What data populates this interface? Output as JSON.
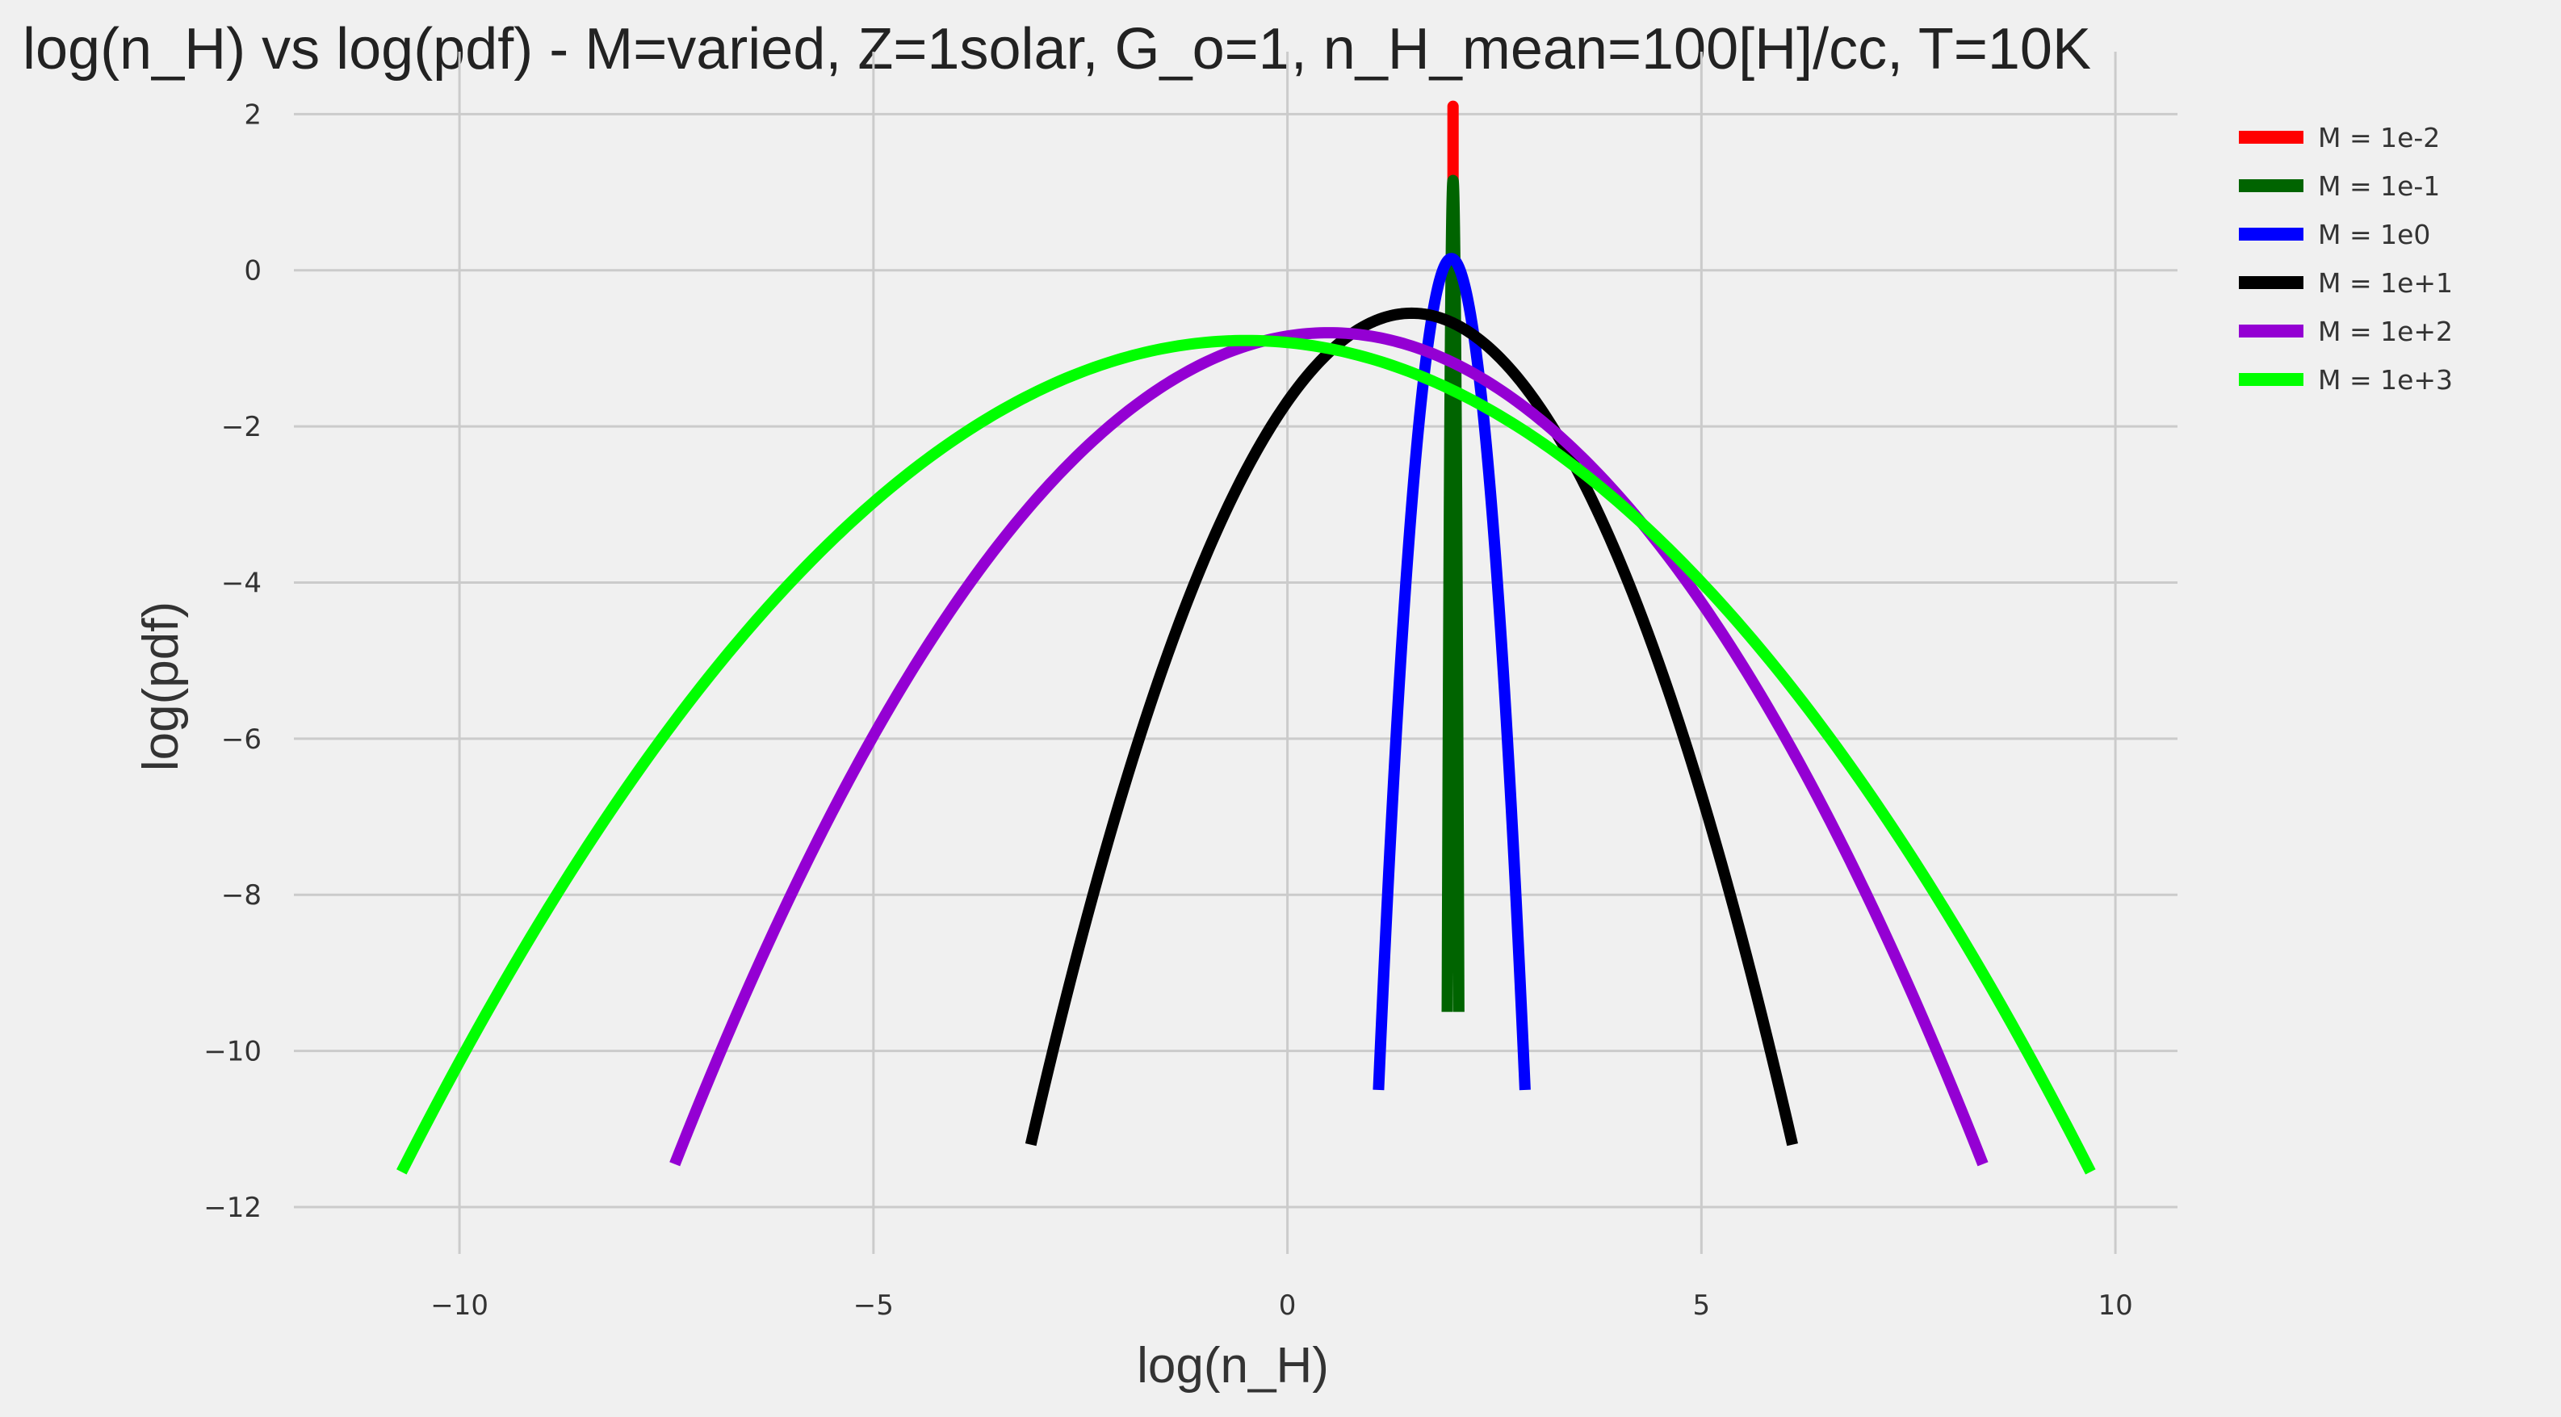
{
  "chart_data": {
    "type": "line",
    "title": "log(n_H) vs log(pdf) - M=varied, Z=1solar, G_o=1, n_H_mean=100[H]/cc, T=10K",
    "xlabel": "log(n_H)",
    "ylabel": "log(pdf)",
    "xlim": [
      -12,
      10.75
    ],
    "ylim": [
      -12.6,
      2.8
    ],
    "xticks": [
      -10,
      -5,
      0,
      5,
      10
    ],
    "yticks": [
      2,
      0,
      -2,
      -4,
      -6,
      -8,
      -10,
      -12
    ],
    "xtick_labels": [
      "−10",
      "−5",
      "0",
      "5",
      "10"
    ],
    "ytick_labels": [
      "2",
      "0",
      "−2",
      "−4",
      "−6",
      "−8",
      "−10",
      "−12"
    ],
    "grid": true,
    "legend_position": "outside-top-right",
    "series": [
      {
        "name": "M = 1e-2",
        "color": "#ff0000",
        "peak_x": 2.0,
        "peak_y": 2.1,
        "x_range": [
          1.999,
          2.001
        ],
        "end_y": -9.0
      },
      {
        "name": "M = 1e-1",
        "color": "#006400",
        "peak_x": 2.0,
        "peak_y": 1.15,
        "x_range": [
          1.93,
          2.07
        ],
        "end_y": -9.5
      },
      {
        "name": "M = 1e0",
        "color": "#0000ff",
        "peak_x": 1.98,
        "peak_y": 0.15,
        "x_range": [
          1.1,
          2.87
        ],
        "end_y": -10.5
      },
      {
        "name": "M = 1e+1",
        "color": "#000000",
        "peak_x": 1.5,
        "peak_y": -0.55,
        "x_range": [
          -3.1,
          6.1
        ],
        "end_y": -11.2
      },
      {
        "name": "M = 1e+2",
        "color": "#9400d3",
        "peak_x": 0.5,
        "peak_y": -0.8,
        "x_range": [
          -7.4,
          8.4
        ],
        "end_y": -11.45
      },
      {
        "name": "M = 1e+3",
        "color": "#00ff00",
        "peak_x": -0.5,
        "peak_y": -0.9,
        "x_range": [
          -10.7,
          9.7
        ],
        "end_y": -11.55
      }
    ]
  }
}
